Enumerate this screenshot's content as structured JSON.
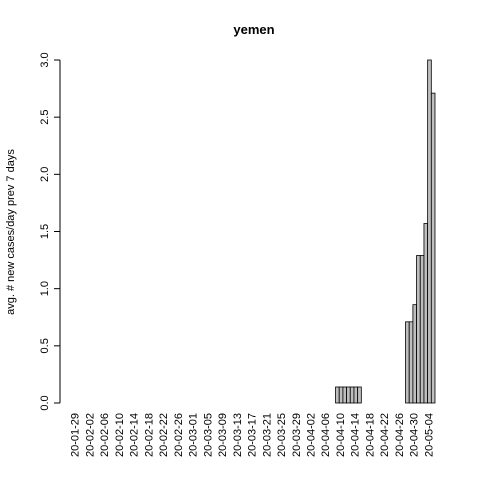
{
  "chart_data": {
    "type": "bar",
    "title": "yemen",
    "y_label": "avg. # new cases/day prev  7  days",
    "categories": [
      "20-01-29",
      null,
      null,
      null,
      "20-02-02",
      null,
      null,
      null,
      "20-02-06",
      null,
      null,
      null,
      "20-02-10",
      null,
      null,
      null,
      "20-02-14",
      null,
      null,
      null,
      "20-02-18",
      null,
      null,
      null,
      "20-02-22",
      null,
      null,
      null,
      "20-02-26",
      null,
      null,
      null,
      "20-03-01",
      null,
      null,
      null,
      "20-03-05",
      null,
      null,
      null,
      "20-03-09",
      null,
      null,
      null,
      "20-03-13",
      null,
      null,
      null,
      "20-03-17",
      null,
      null,
      null,
      "20-03-21",
      null,
      null,
      null,
      "20-03-25",
      null,
      null,
      null,
      "20-03-29",
      null,
      null,
      null,
      "20-04-02",
      null,
      null,
      null,
      "20-04-06",
      null,
      null,
      null,
      "20-04-10",
      null,
      null,
      null,
      "20-04-14",
      null,
      null,
      null,
      "20-04-18",
      null,
      null,
      null,
      "20-04-22",
      null,
      null,
      null,
      "20-04-26",
      null,
      null,
      null,
      "20-04-30",
      null,
      null,
      null,
      "20-05-04",
      null
    ],
    "values": [
      0,
      0,
      0,
      0,
      0,
      0,
      0,
      0,
      0,
      0,
      0,
      0,
      0,
      0,
      0,
      0,
      0,
      0,
      0,
      0,
      0,
      0,
      0,
      0,
      0,
      0,
      0,
      0,
      0,
      0,
      0,
      0,
      0,
      0,
      0,
      0,
      0,
      0,
      0,
      0,
      0,
      0,
      0,
      0,
      0,
      0,
      0,
      0,
      0,
      0,
      0,
      0,
      0,
      0,
      0,
      0,
      0,
      0,
      0,
      0,
      0,
      0,
      0,
      0,
      0,
      0,
      0,
      0,
      0,
      0,
      0,
      0.14,
      0.14,
      0.14,
      0.14,
      0.14,
      0.14,
      0.14,
      0,
      0,
      0,
      0,
      0,
      0,
      0,
      0,
      0,
      0,
      0,
      0,
      0.71,
      0.71,
      0.86,
      1.29,
      1.29,
      1.57,
      3.0,
      2.71
    ],
    "color": "#bebebe",
    "ylim": [
      0,
      3.0
    ],
    "yticks": [
      {
        "value": 0,
        "label": "0.0"
      },
      0.5,
      {
        "value": 1,
        "label": "1.0"
      },
      1.5,
      {
        "value": 2,
        "label": "2.0"
      },
      2.5,
      {
        "value": 3,
        "label": "3.0"
      }
    ]
  }
}
